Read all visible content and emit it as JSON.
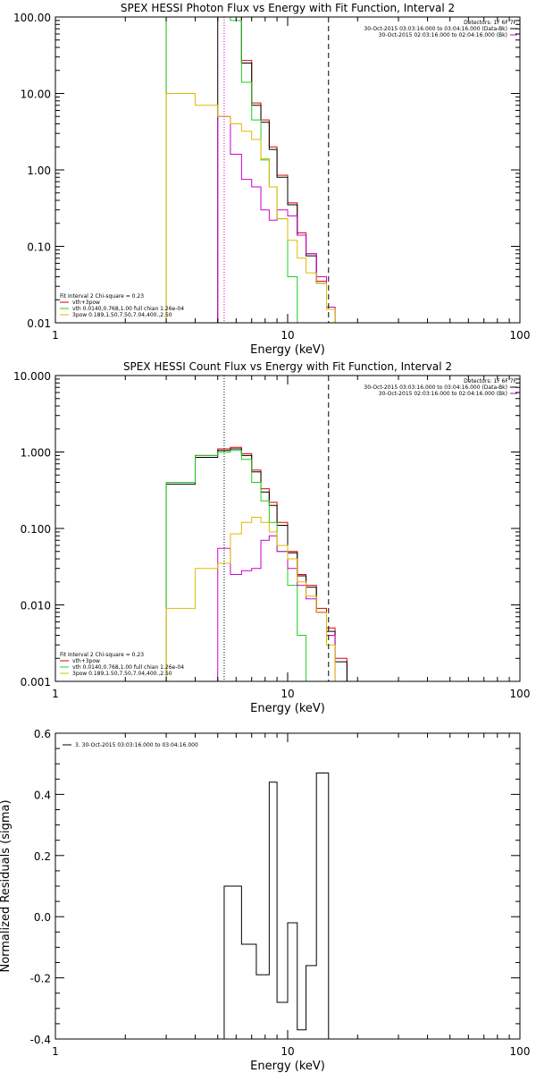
{
  "colors": {
    "black": "#000000",
    "red": "#dd0000",
    "green": "#22cc22",
    "magenta": "#cc00cc",
    "yellow": "#ddbb00"
  },
  "chart_data": [
    {
      "id": "photon",
      "type": "line",
      "title": "SPEX HESSI Photon Flux vs Energy with Fit Function, Interval 2",
      "xlabel": "Energy (keV)",
      "ylabel": "",
      "xscale": "log",
      "yscale": "log",
      "xlim": [
        1,
        100
      ],
      "ylim": [
        0.01,
        100
      ],
      "xticks": [
        {
          "v": 1,
          "label": "1"
        },
        {
          "v": 10,
          "label": "10"
        },
        {
          "v": 100,
          "label": "100"
        }
      ],
      "yticks": [
        {
          "v": 0.01,
          "label": "0.01"
        },
        {
          "v": 0.1,
          "label": "0.10"
        },
        {
          "v": 1,
          "label": "1.00"
        },
        {
          "v": 10,
          "label": "10.00"
        },
        {
          "v": 100,
          "label": "100.00"
        }
      ],
      "edges": [
        3,
        4,
        5,
        5.67,
        6.33,
        7,
        7.67,
        8.33,
        9,
        10,
        11,
        12,
        13.3,
        14.7,
        16,
        18
      ],
      "series": [
        {
          "name": "",
          "color": "#dd0000",
          "values": [
            100,
            100,
            100,
            100,
            27,
            7.5,
            4.5,
            2.0,
            0.85,
            0.37,
            0.15,
            0.08,
            0.035,
            0.016,
            0.01
          ]
        },
        {
          "name": "",
          "color": "#000000",
          "values": [
            null,
            null,
            100,
            100,
            25,
            7.0,
            4.2,
            1.85,
            0.8,
            0.35,
            0.14,
            0.075,
            0.033,
            0.015,
            null
          ]
        },
        {
          "name": "",
          "color": "#22cc22",
          "values": [
            100,
            100,
            100,
            90,
            14,
            4.5,
            1.35,
            0.6,
            0.23,
            0.04,
            0.01,
            0.01,
            0.01,
            0.01,
            null
          ]
        },
        {
          "name": "",
          "color": "#cc00cc",
          "values": [
            null,
            null,
            5.0,
            1.6,
            0.75,
            0.6,
            0.3,
            0.22,
            0.3,
            0.25,
            0.14,
            0.08,
            0.04,
            0.016,
            null
          ]
        },
        {
          "name": "",
          "color": "#ddbb00",
          "values": [
            10.0,
            7.0,
            5.0,
            4.0,
            3.2,
            2.5,
            1.4,
            0.6,
            0.23,
            0.12,
            0.07,
            0.045,
            0.033,
            0.015,
            null
          ]
        }
      ],
      "vlines": [
        {
          "x": 5.33,
          "color": "#cc00cc",
          "dash": "dotted"
        },
        {
          "x": 15,
          "color": "#000000",
          "dash": "dashed"
        }
      ],
      "legend_tl": {
        "header": "Detectors: 1F 6F 7F",
        "lines": [
          {
            "text": "30-Oct-2015 03:03:16.000 to 03:04:16.000 (Data-Bk)",
            "color": "#000000"
          },
          {
            "text": "30-Oct-2015 02:03:16.000 to 02:04:16.000 (Bk)",
            "color": "#cc00cc"
          }
        ]
      },
      "legend_bl": [
        {
          "text": "Fit Interval 2   Chi-square = 0.23",
          "color": ""
        },
        {
          "text": "vth+3pow",
          "color": "#dd0000"
        },
        {
          "text": "vth 0.0140,0.768,1.00  full chian 1.26e-04",
          "color": "#22cc22"
        },
        {
          "text": "3pow 0.189,1.50,7.50,7.04,400.,2.50",
          "color": "#ddbb00"
        }
      ]
    },
    {
      "id": "count",
      "type": "line",
      "title": "SPEX HESSI Count Flux vs Energy with Fit Function, Interval 2",
      "xlabel": "Energy (keV)",
      "ylabel": "",
      "xscale": "log",
      "yscale": "log",
      "xlim": [
        1,
        100
      ],
      "ylim": [
        0.001,
        10
      ],
      "xticks": [
        {
          "v": 1,
          "label": "1"
        },
        {
          "v": 10,
          "label": "10"
        },
        {
          "v": 100,
          "label": "100"
        }
      ],
      "yticks": [
        {
          "v": 0.001,
          "label": "0.001"
        },
        {
          "v": 0.01,
          "label": "0.010"
        },
        {
          "v": 0.1,
          "label": "0.100"
        },
        {
          "v": 1,
          "label": "1.000"
        },
        {
          "v": 10,
          "label": "10.000"
        }
      ],
      "edges": [
        3,
        4,
        5,
        5.67,
        6.33,
        7,
        7.67,
        8.33,
        9,
        10,
        11,
        12,
        13.3,
        14.7,
        16,
        18
      ],
      "series": [
        {
          "name": "",
          "color": "#dd0000",
          "values": [
            0.4,
            0.9,
            1.1,
            1.15,
            0.95,
            0.58,
            0.33,
            0.22,
            0.12,
            0.05,
            0.025,
            0.018,
            0.009,
            0.005,
            0.002
          ]
        },
        {
          "name": "",
          "color": "#000000",
          "values": [
            0.38,
            0.85,
            1.05,
            1.1,
            0.9,
            0.55,
            0.3,
            0.2,
            0.11,
            0.048,
            0.024,
            0.017,
            0.008,
            0.0045,
            0.0018
          ]
        },
        {
          "name": "",
          "color": "#22cc22",
          "values": [
            0.4,
            0.9,
            1.0,
            1.05,
            0.8,
            0.4,
            0.23,
            0.12,
            0.05,
            0.018,
            0.004,
            0.001,
            null,
            null,
            null
          ]
        },
        {
          "name": "",
          "color": "#cc00cc",
          "values": [
            null,
            null,
            0.055,
            0.025,
            0.028,
            0.03,
            0.07,
            0.08,
            0.05,
            0.03,
            0.018,
            0.012,
            0.008,
            0.004,
            null
          ]
        },
        {
          "name": "",
          "color": "#ddbb00",
          "values": [
            0.009,
            0.03,
            0.035,
            0.085,
            0.12,
            0.14,
            0.12,
            0.09,
            0.06,
            0.04,
            0.02,
            0.013,
            0.008,
            0.003,
            0.001
          ]
        }
      ],
      "vlines": [
        {
          "x": 5.33,
          "color": "#000000",
          "dash": "dotted"
        },
        {
          "x": 15,
          "color": "#000000",
          "dash": "dashed"
        }
      ],
      "legend_tl": {
        "header": "Detectors: 1F 6F 7F",
        "lines": [
          {
            "text": "30-Oct-2015 03:03:16.000 to 03:04:16.000 (Data-Bk)",
            "color": "#000000"
          },
          {
            "text": "30-Oct-2015 02:03:16.000 to 02:04:16.000 (Bk)",
            "color": "#cc00cc"
          }
        ]
      },
      "legend_bl": [
        {
          "text": "Fit Interval 2   Chi-square = 0.23",
          "color": ""
        },
        {
          "text": "vth+3pow",
          "color": "#dd0000"
        },
        {
          "text": "vth 0.0140,0.768,1.00  full chian 1.26e-04",
          "color": "#22cc22"
        },
        {
          "text": "3pow 0.189,1.50,7.50,7.04,400.,2.50",
          "color": "#ddbb00"
        }
      ]
    },
    {
      "id": "residuals",
      "type": "line",
      "title": "",
      "xlabel": "Energy (keV)",
      "ylabel": "Normalized Residuals (sigma)",
      "xscale": "log",
      "yscale": "linear",
      "xlim": [
        1,
        100
      ],
      "ylim": [
        -0.4,
        0.6
      ],
      "xticks": [
        {
          "v": 1,
          "label": "1"
        },
        {
          "v": 10,
          "label": "10"
        },
        {
          "v": 100,
          "label": "100"
        }
      ],
      "yticks": [
        {
          "v": -0.4,
          "label": "-0.4"
        },
        {
          "v": -0.2,
          "label": "-0.2"
        },
        {
          "v": 0,
          "label": "0.0"
        },
        {
          "v": 0.2,
          "label": "0.2"
        },
        {
          "v": 0.4,
          "label": "0.4"
        },
        {
          "v": 0.6,
          "label": "0.6"
        }
      ],
      "edges": [
        5.33,
        6.33,
        7.33,
        8.33,
        9,
        10,
        11,
        12,
        13.3,
        15
      ],
      "series": [
        {
          "name": "",
          "color": "#000000",
          "values": [
            0.1,
            -0.09,
            -0.19,
            0.44,
            -0.28,
            -0.02,
            -0.37,
            -0.16,
            0.47
          ]
        }
      ],
      "vlines": [],
      "legend_top": {
        "text": "3. 30-Oct-2015 03:03:16.000 to 03:04:16.000",
        "color": "#000000"
      }
    }
  ]
}
